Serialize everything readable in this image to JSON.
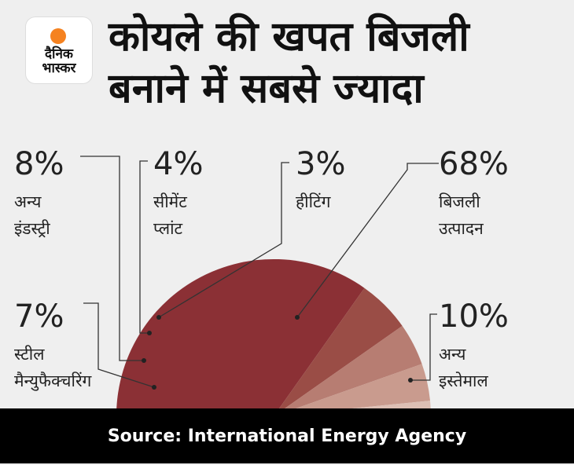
{
  "brand": {
    "line1": "दैनिक",
    "line2": "भास्कर"
  },
  "header": {
    "title_line1": "कोयले की खपत बिजली",
    "title_line2": "बनाने में सबसे ज्यादा"
  },
  "chart_data": {
    "type": "pie",
    "title": "कोयले की खपत बिजली बनाने में सबसे ज्यादा",
    "slices": [
      {
        "label": "बिजली उत्पादन",
        "label_lines": [
          "बिजली",
          "उत्पादन"
        ],
        "value": 68,
        "value_label": "68%",
        "color": "#8b3035"
      },
      {
        "label": "अन्य इस्तेमाल",
        "label_lines": [
          "अन्य",
          "इस्तेमाल"
        ],
        "value": 10,
        "value_label": "10%",
        "color": "#9a4d46"
      },
      {
        "label": "अन्य इंडस्ट्री",
        "label_lines": [
          "अन्य",
          "इंडस्ट्री"
        ],
        "value": 8,
        "value_label": "8%",
        "color": "#b77d72"
      },
      {
        "label": "स्टील मैन्युफैक्चरिंग",
        "label_lines": [
          "स्टील",
          "मैन्युफैक्चरिंग"
        ],
        "value": 7,
        "value_label": "7%",
        "color": "#c99b8e"
      },
      {
        "label": "सीमेंट प्लांट",
        "label_lines": [
          "सीमेंट",
          "प्लांट"
        ],
        "value": 4,
        "value_label": "4%",
        "color": "#ddbfb4"
      },
      {
        "label": "हीटिंग",
        "label_lines": [
          "हीटिंग"
        ],
        "value": 3,
        "value_label": "3%",
        "color": "#ecd6cd"
      }
    ]
  },
  "footer": {
    "source": "Source: International Energy Agency"
  }
}
